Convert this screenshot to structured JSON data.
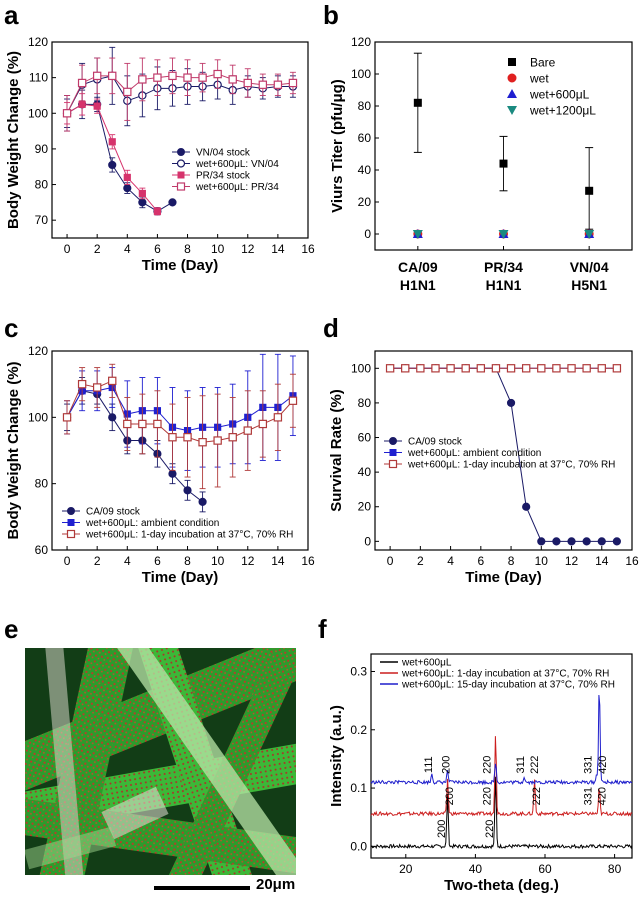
{
  "panel_labels": {
    "a": "a",
    "b": "b",
    "c": "c",
    "d": "d",
    "e": "e",
    "f": "f"
  },
  "colors": {
    "navy": "#1a1a66",
    "magenta": "#d6336c",
    "pink_open": "#c03a6a",
    "blue": "#1f1fd0",
    "brown_open": "#b03a3a",
    "red": "#e02020",
    "teal": "#1a8a80",
    "xrd_black": "#000000",
    "xrd_red": "#cc1e1e",
    "xrd_blue": "#1e1ecc"
  },
  "sem": {
    "scale_label": "20μm"
  },
  "chart_data": [
    {
      "panel": "a",
      "type": "line",
      "xlabel": "Time (Day)",
      "ylabel": "Body Weight Change (%)",
      "xlim": [
        -1,
        16
      ],
      "ylim": [
        65,
        120
      ],
      "xticks": [
        "0",
        "2",
        "4",
        "6",
        "8",
        "10",
        "12",
        "14",
        "16"
      ],
      "yticks": [
        "70",
        "80",
        "90",
        "100",
        "110",
        "120"
      ],
      "legend_position": "center-right",
      "series": [
        {
          "name": "VN/04 stock",
          "marker": "filled-circle",
          "color": "#1a1a66",
          "x": [
            0,
            1,
            2,
            3,
            4,
            5,
            6,
            7
          ],
          "y": [
            100,
            102.5,
            102.5,
            85.5,
            79,
            75,
            72.5,
            75
          ],
          "err": [
            4,
            4,
            2,
            2,
            1.5,
            1.5,
            1,
            0
          ]
        },
        {
          "name": "wet+600μL: VN/04",
          "marker": "open-circle",
          "color": "#1a1a66",
          "x": [
            0,
            1,
            2,
            3,
            4,
            5,
            6,
            7,
            8,
            9,
            10,
            11,
            12,
            13,
            14,
            15
          ],
          "y": [
            100,
            108,
            109.5,
            110.5,
            103.5,
            105,
            107,
            107,
            107.5,
            107.5,
            108,
            106.5,
            107.5,
            107,
            107.5,
            107.5
          ],
          "err": [
            5,
            6,
            6,
            8,
            7,
            6,
            6,
            5,
            5,
            4,
            4,
            4,
            3,
            3,
            3,
            3
          ]
        },
        {
          "name": "PR/34 stock",
          "marker": "filled-square",
          "color": "#d6336c",
          "x": [
            0,
            1,
            2,
            3,
            4,
            5,
            6
          ],
          "y": [
            100,
            102.5,
            102,
            92,
            82,
            77.5,
            72.5
          ],
          "err": [
            3,
            3,
            2,
            2,
            2,
            1.5,
            1
          ]
        },
        {
          "name": "wet+600μL: PR/34",
          "marker": "open-square",
          "color": "#c03a6a",
          "x": [
            0,
            1,
            2,
            3,
            4,
            5,
            6,
            7,
            8,
            9,
            10,
            11,
            12,
            13,
            14,
            15
          ],
          "y": [
            100,
            108.5,
            110.5,
            110.5,
            106,
            109.5,
            110,
            110.5,
            110,
            110,
            111,
            109.5,
            108.5,
            108,
            108,
            108.5
          ],
          "err": [
            5,
            5,
            5,
            5,
            8,
            6,
            5,
            5,
            5,
            4,
            4,
            4,
            4,
            3,
            3,
            3
          ]
        }
      ]
    },
    {
      "panel": "b",
      "type": "scatter",
      "xlabel": "",
      "ylabel": "Viurs Titer (pfu/μg)",
      "ylim": [
        -10,
        120
      ],
      "yticks": [
        "0",
        "20",
        "40",
        "60",
        "80",
        "100",
        "120"
      ],
      "categories": [
        {
          "line1": "CA/09",
          "line2": "H1N1"
        },
        {
          "line1": "PR/34",
          "line2": "H1N1"
        },
        {
          "line1": "VN/04",
          "line2": "H5N1"
        }
      ],
      "legend_position": "top-right",
      "series": [
        {
          "name": "Bare",
          "marker": "filled-square",
          "color": "#000000",
          "values": [
            82,
            44,
            27
          ],
          "err_low": [
            31,
            17,
            24
          ],
          "err_high": [
            31,
            17,
            27
          ]
        },
        {
          "name": "wet",
          "marker": "filled-circle",
          "color": "#e02020",
          "values": [
            0,
            0,
            0
          ]
        },
        {
          "name": "wet+600μL",
          "marker": "triangle-up",
          "color": "#1f1fd0",
          "values": [
            0,
            0,
            0
          ]
        },
        {
          "name": "wet+1200μL",
          "marker": "triangle-down",
          "color": "#1a8a80",
          "values": [
            0,
            0,
            0
          ]
        }
      ]
    },
    {
      "panel": "c",
      "type": "line",
      "xlabel": "Time (Day)",
      "ylabel": "Body Weight Change (%)",
      "xlim": [
        -1,
        16
      ],
      "ylim": [
        60,
        120
      ],
      "xticks": [
        "0",
        "2",
        "4",
        "6",
        "8",
        "10",
        "12",
        "14",
        "16"
      ],
      "yticks": [
        "60",
        "80",
        "100",
        "120"
      ],
      "legend_position": "bottom-left",
      "series": [
        {
          "name": "CA/09 stock",
          "marker": "filled-circle",
          "color": "#1a1a66",
          "x": [
            0,
            1,
            2,
            3,
            4,
            5,
            6,
            7,
            8,
            9
          ],
          "y": [
            100,
            108,
            107,
            100,
            93,
            93,
            89,
            83,
            78,
            74.5
          ],
          "err": [
            4,
            4,
            3,
            4,
            4,
            4,
            4,
            3,
            3,
            3
          ]
        },
        {
          "name": "wet+600μL: ambient condition",
          "marker": "filled-square",
          "color": "#1f1fd0",
          "x": [
            0,
            1,
            2,
            3,
            4,
            5,
            6,
            7,
            8,
            9,
            10,
            11,
            12,
            13,
            14,
            15
          ],
          "y": [
            100,
            108,
            108,
            109,
            101,
            102,
            102,
            97,
            96,
            97,
            97,
            98,
            100,
            103,
            103,
            106.5
          ],
          "err": [
            5,
            6,
            6,
            6,
            10,
            10,
            10,
            12,
            12,
            12,
            12,
            12,
            14,
            16,
            16,
            12
          ]
        },
        {
          "name": "wet+600μL: 1-day incubation at 37°C, 70% RH",
          "marker": "open-square",
          "color": "#b03a3a",
          "x": [
            0,
            1,
            2,
            3,
            4,
            5,
            6,
            7,
            8,
            9,
            10,
            11,
            12,
            13,
            14,
            15
          ],
          "y": [
            100,
            110,
            109,
            111,
            98,
            98,
            98,
            94,
            94,
            92.5,
            93,
            94,
            96,
            98,
            100,
            105
          ],
          "err": [
            5,
            5,
            6,
            5,
            8,
            9,
            10,
            10,
            12,
            14,
            14,
            12,
            12,
            10,
            10,
            8
          ]
        }
      ]
    },
    {
      "panel": "d",
      "type": "line",
      "xlabel": "Time (Day)",
      "ylabel": "Survival Rate (%)",
      "xlim": [
        -1,
        16
      ],
      "ylim": [
        -5,
        110
      ],
      "xticks": [
        "0",
        "2",
        "4",
        "6",
        "8",
        "10",
        "12",
        "14",
        "16"
      ],
      "yticks": [
        "0",
        "20",
        "40",
        "60",
        "80",
        "100"
      ],
      "legend_position": "center-left",
      "series": [
        {
          "name": "CA/09 stock",
          "marker": "filled-circle",
          "color": "#1a1a66",
          "x": [
            0,
            1,
            2,
            3,
            4,
            5,
            6,
            7,
            8,
            9,
            10,
            11,
            12,
            13,
            14,
            15
          ],
          "y": [
            100,
            100,
            100,
            100,
            100,
            100,
            100,
            100,
            80,
            20,
            0,
            0,
            0,
            0,
            0,
            0
          ]
        },
        {
          "name": "wet+600μL: ambient condition",
          "marker": "filled-square",
          "color": "#1f1fd0",
          "x": [
            0,
            1,
            2,
            3,
            4,
            5,
            6,
            7,
            8,
            9,
            10,
            11,
            12,
            13,
            14,
            15
          ],
          "y": [
            100,
            100,
            100,
            100,
            100,
            100,
            100,
            100,
            100,
            100,
            100,
            100,
            100,
            100,
            100,
            100
          ]
        },
        {
          "name": "wet+600μL: 1-day incubation at 37°C, 70% RH",
          "marker": "open-square",
          "color": "#b03a3a",
          "x": [
            0,
            1,
            2,
            3,
            4,
            5,
            6,
            7,
            8,
            9,
            10,
            11,
            12,
            13,
            14,
            15
          ],
          "y": [
            100,
            100,
            100,
            100,
            100,
            100,
            100,
            100,
            100,
            100,
            100,
            100,
            100,
            100,
            100,
            100
          ]
        }
      ]
    },
    {
      "panel": "f",
      "type": "line",
      "xlabel": "Two-theta (deg.)",
      "ylabel": "Intensity (a.u.)",
      "xlim": [
        10,
        85
      ],
      "ylim": [
        -0.02,
        0.33
      ],
      "xticks": [
        "20",
        "40",
        "60",
        "80"
      ],
      "yticks": [
        "0.0",
        "0.1",
        "0.2",
        "0.3"
      ],
      "legend_position": "top-left",
      "series": [
        {
          "name": "wet+600μL",
          "color": "#000000",
          "baseline": 0.0,
          "peaks": [
            {
              "x": 32,
              "h": 0.09
            },
            {
              "x": 45.8,
              "h": 0.12
            }
          ],
          "labels": [
            {
              "x": 31.2,
              "text": "200"
            },
            {
              "x": 45.0,
              "text": "220"
            }
          ]
        },
        {
          "name": "wet+600μL: 1-day incubation at 37°C, 70% RH",
          "color": "#cc1e1e",
          "baseline": 0.056,
          "peaks": [
            {
              "x": 32,
              "h": 0.06
            },
            {
              "x": 45.8,
              "h": 0.14
            },
            {
              "x": 57,
              "h": 0.06
            },
            {
              "x": 75.6,
              "h": 0.045
            }
          ],
          "labels": [
            {
              "x": 33.6,
              "text": "200"
            },
            {
              "x": 44.3,
              "text": "220"
            },
            {
              "x": 58.6,
              "text": "222"
            },
            {
              "x": 73.4,
              "text": "331"
            },
            {
              "x": 77.4,
              "text": "420"
            }
          ]
        },
        {
          "name": "wet+600μL: 15-day incubation at 37°C, 70% RH",
          "color": "#1e1ecc",
          "baseline": 0.11,
          "peaks": [
            {
              "x": 27.5,
              "h": 0.015
            },
            {
              "x": 32,
              "h": 0.02
            },
            {
              "x": 45.8,
              "h": 0.035
            },
            {
              "x": 54,
              "h": 0.01
            },
            {
              "x": 74.8,
              "h": 0.012
            },
            {
              "x": 75.6,
              "h": 0.17
            }
          ],
          "labels": [
            {
              "x": 27.5,
              "text": "111"
            },
            {
              "x": 32.5,
              "text": "200"
            },
            {
              "x": 44.3,
              "text": "220"
            },
            {
              "x": 54.0,
              "text": "311"
            },
            {
              "x": 58.0,
              "text": "222"
            },
            {
              "x": 73.4,
              "text": "331"
            },
            {
              "x": 77.6,
              "text": "420"
            }
          ]
        }
      ]
    }
  ]
}
